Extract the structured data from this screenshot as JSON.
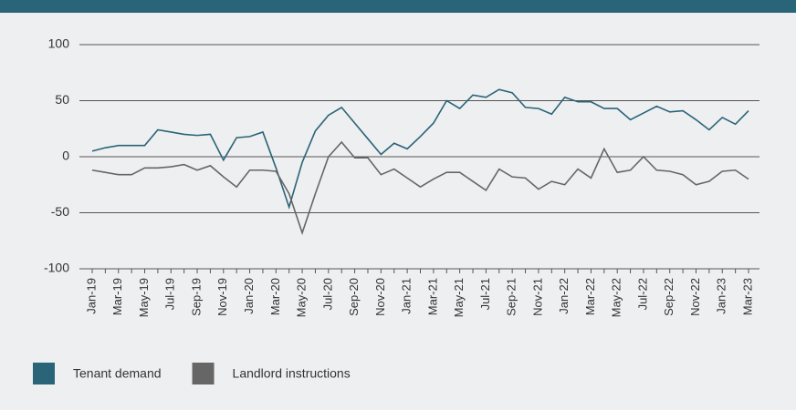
{
  "chart_data": {
    "type": "line",
    "categories": [
      "Jan-19",
      null,
      "Mar-19",
      null,
      "May-19",
      null,
      "Jul-19",
      null,
      "Sep-19",
      null,
      "Nov-19",
      null,
      "Jan-20",
      null,
      "Mar-20",
      null,
      "May-20",
      null,
      "Jul-20",
      null,
      "Sep-20",
      null,
      "Nov-20",
      null,
      "Jan-21",
      null,
      "Mar-21",
      null,
      "May-21",
      null,
      "Jul-21",
      null,
      "Sep-21",
      null,
      "Nov-21",
      null,
      "Jan-22",
      null,
      "Mar-22",
      null,
      "May-22",
      null,
      "Jul-22",
      null,
      "Sep-22",
      null,
      "Nov-22",
      null,
      "Jan-23",
      null,
      "Mar-23"
    ],
    "series": [
      {
        "name": "Tenant demand",
        "color": "#2a6478",
        "values": [
          5,
          8,
          10,
          10,
          10,
          24,
          22,
          20,
          19,
          20,
          -3,
          17,
          18,
          22,
          -10,
          -45,
          -5,
          23,
          37,
          44,
          30,
          16,
          2,
          12,
          7,
          18,
          30,
          50,
          43,
          55,
          53,
          60,
          57,
          44,
          43,
          38,
          53,
          49,
          49,
          43,
          43,
          33,
          39,
          45,
          40,
          41,
          33,
          24,
          35,
          29,
          41
        ]
      },
      {
        "name": "Landlord instructions",
        "color": "#666666",
        "values": [
          -12,
          -14,
          -16,
          -16,
          -10,
          -10,
          -9,
          -7,
          -12,
          -8,
          -18,
          -27,
          -12,
          -12,
          -13,
          -33,
          -68,
          -33,
          0,
          13,
          -1,
          -1,
          -16,
          -11,
          -19,
          -27,
          -20,
          -14,
          -14,
          -22,
          -30,
          -11,
          -18,
          -19,
          -29,
          -22,
          -25,
          -11,
          -19,
          7,
          -14,
          -12,
          0,
          -12,
          -13,
          -16,
          -25,
          -22,
          -13,
          -12,
          -20
        ]
      }
    ],
    "ylim": [
      -100,
      100
    ],
    "yticks": [
      -100,
      -50,
      0,
      50,
      100
    ],
    "grid": true
  }
}
